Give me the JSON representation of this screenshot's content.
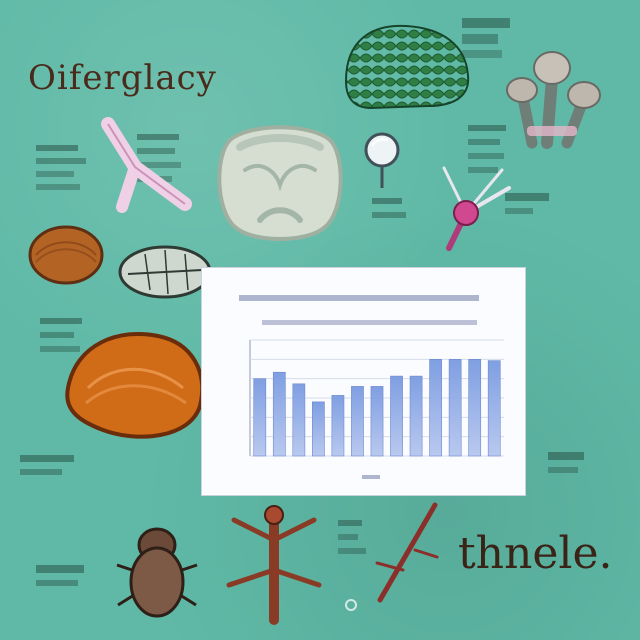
{
  "labels": {
    "top_left": "Oiferglacy",
    "bottom_right": "thnele."
  },
  "chart_data": {
    "type": "bar",
    "values": [
      0.6,
      0.65,
      0.56,
      0.42,
      0.47,
      0.54,
      0.54,
      0.62,
      0.62,
      0.75,
      0.75,
      0.75,
      0.74
    ],
    "ylim": [
      0,
      0.9
    ],
    "grid": true,
    "colors": {
      "bar_top": "#7f9fe2",
      "bar_bottom": "#b9c9ef",
      "gridline": "#d6dce9"
    }
  },
  "decor_icons": [
    "green-beetle-shell-icon",
    "mushroom-cluster-icon",
    "pink-y-bone-icon",
    "skull-bone-icon",
    "mirror-icon",
    "pink-flower-icon",
    "seed-icon",
    "leaf-wing-icon",
    "large-mushroom-cap-icon",
    "insect-specimen-icon",
    "ant-specimen-icon",
    "stick-insect-icon"
  ]
}
